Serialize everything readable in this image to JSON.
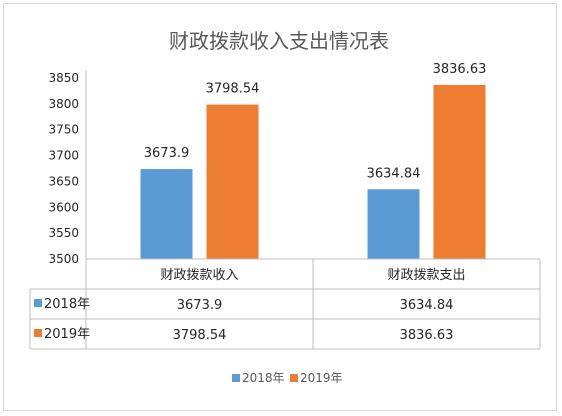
{
  "chart_data": {
    "type": "bar",
    "title": "财政拨款收入支出情况表",
    "categories": [
      "财政拨款收入",
      "财政拨款支出"
    ],
    "series": [
      {
        "name": "2018年",
        "values": [
          3673.9,
          3634.84
        ],
        "labels": [
          "3673.9",
          "3634.84"
        ],
        "color": "#5b9bd5"
      },
      {
        "name": "2019年",
        "values": [
          3798.54,
          3836.63
        ],
        "labels": [
          "3798.54",
          "3836.63"
        ],
        "color": "#ed7d31"
      }
    ],
    "ylim": [
      3500,
      3850
    ],
    "yticks": [
      3500,
      3550,
      3600,
      3650,
      3700,
      3750,
      3800,
      3850
    ],
    "data_table": true,
    "legend_position": "bottom",
    "grid": false
  }
}
